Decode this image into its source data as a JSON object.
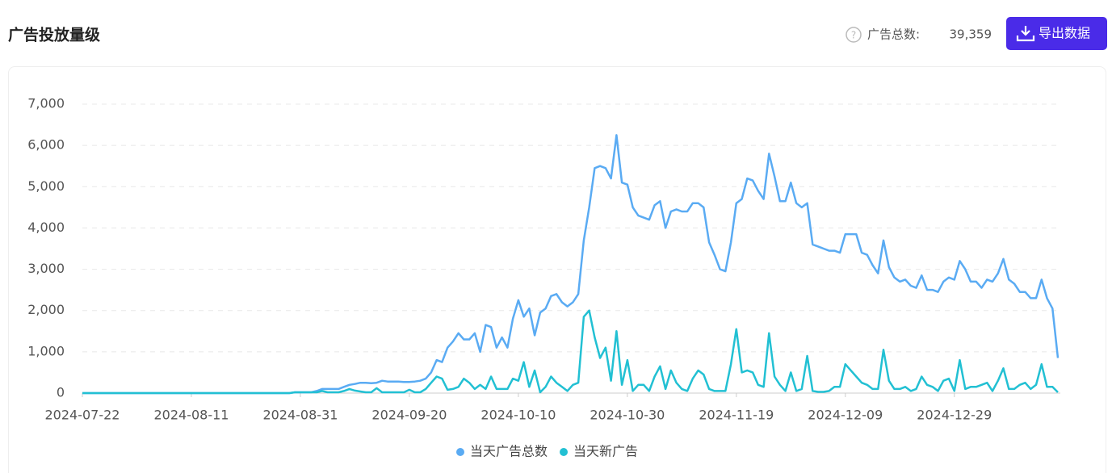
{
  "header": {
    "title": "广告投放量级",
    "total_label": "广告总数:",
    "total_value": "39,359",
    "button": "导出数据"
  },
  "chart_data": {
    "type": "line",
    "categories": [
      "2024-07-22",
      null,
      null,
      null,
      null,
      null,
      null,
      null,
      null,
      null,
      null,
      null,
      null,
      null,
      null,
      null,
      null,
      null,
      null,
      null,
      "2024-08-11",
      null,
      null,
      null,
      null,
      null,
      null,
      null,
      null,
      null,
      null,
      null,
      null,
      null,
      null,
      null,
      null,
      null,
      null,
      null,
      "2024-08-31",
      null,
      null,
      null,
      null,
      null,
      null,
      null,
      null,
      null,
      null,
      null,
      null,
      null,
      null,
      null,
      null,
      null,
      null,
      null,
      "2024-09-20",
      null,
      null,
      null,
      null,
      null,
      null,
      null,
      null,
      null,
      null,
      null,
      null,
      null,
      null,
      null,
      null,
      null,
      null,
      null,
      "2024-10-10",
      null,
      null,
      null,
      null,
      null,
      null,
      null,
      null,
      null,
      null,
      null,
      null,
      null,
      null,
      null,
      null,
      null,
      null,
      null,
      "2024-10-30",
      null,
      null,
      null,
      null,
      null,
      null,
      null,
      null,
      null,
      null,
      null,
      null,
      null,
      null,
      null,
      null,
      null,
      null,
      null,
      "2024-11-19",
      null,
      null,
      null,
      null,
      null,
      null,
      null,
      null,
      null,
      null,
      null,
      null,
      null,
      null,
      null,
      null,
      null,
      null,
      null,
      "2024-12-09",
      null,
      null,
      null,
      null,
      null,
      null,
      null,
      null,
      null,
      null,
      null,
      null,
      null,
      null,
      null,
      null,
      null,
      null,
      null,
      "2024-12-29",
      null,
      null,
      null,
      null,
      null,
      null,
      null,
      null,
      null,
      null,
      null,
      null,
      null,
      null,
      null,
      null,
      null,
      null,
      null
    ],
    "series": [
      {
        "name": "当天广告总数",
        "color": "#5aabf3",
        "values": [
          0,
          0,
          0,
          0,
          0,
          0,
          0,
          0,
          0,
          0,
          0,
          0,
          0,
          0,
          0,
          0,
          0,
          0,
          0,
          0,
          0,
          0,
          0,
          0,
          0,
          0,
          0,
          0,
          0,
          0,
          0,
          0,
          0,
          0,
          0,
          0,
          0,
          0,
          0,
          20,
          20,
          20,
          20,
          50,
          100,
          100,
          100,
          100,
          150,
          200,
          220,
          250,
          250,
          240,
          250,
          300,
          280,
          280,
          280,
          270,
          270,
          280,
          300,
          350,
          500,
          800,
          750,
          1100,
          1250,
          1450,
          1300,
          1300,
          1450,
          1000,
          1650,
          1600,
          1100,
          1350,
          1100,
          1800,
          2250,
          1850,
          2050,
          1400,
          1950,
          2050,
          2350,
          2400,
          2200,
          2100,
          2200,
          2400,
          3700,
          4500,
          5450,
          5500,
          5450,
          5200,
          6250,
          5100,
          5050,
          4500,
          4300,
          4250,
          4200,
          4550,
          4650,
          4000,
          4400,
          4450,
          4400,
          4400,
          4600,
          4600,
          4500,
          3650,
          3350,
          3000,
          2950,
          3650,
          4600,
          4700,
          5200,
          5150,
          4900,
          4700,
          5800,
          5250,
          4650,
          4650,
          5100,
          4600,
          4500,
          4600,
          3600,
          3550,
          3500,
          3450,
          3450,
          3400,
          3850,
          3850,
          3850,
          3400,
          3350,
          3100,
          2900,
          3700,
          3050,
          2800,
          2700,
          2750,
          2600,
          2550,
          2850,
          2500,
          2500,
          2450,
          2700,
          2800,
          2750,
          3200,
          3000,
          2700,
          2700,
          2550,
          2750,
          2700,
          2900,
          3250,
          2750,
          2650,
          2450,
          2450,
          2300,
          2300,
          2750,
          2300,
          2050,
          850
        ]
      },
      {
        "name": "当天新广告",
        "color": "#22c0d3",
        "values": [
          0,
          0,
          0,
          0,
          0,
          0,
          0,
          0,
          0,
          0,
          0,
          0,
          0,
          0,
          0,
          0,
          0,
          0,
          0,
          0,
          0,
          0,
          0,
          0,
          0,
          0,
          0,
          0,
          0,
          0,
          0,
          0,
          0,
          0,
          0,
          0,
          0,
          0,
          0,
          20,
          20,
          20,
          20,
          20,
          50,
          20,
          20,
          20,
          50,
          100,
          60,
          40,
          20,
          20,
          120,
          20,
          20,
          20,
          20,
          20,
          80,
          20,
          20,
          100,
          250,
          400,
          350,
          80,
          100,
          150,
          350,
          250,
          100,
          200,
          100,
          400,
          100,
          100,
          100,
          350,
          300,
          750,
          150,
          550,
          20,
          150,
          400,
          250,
          150,
          50,
          200,
          250,
          1850,
          2000,
          1350,
          850,
          1100,
          300,
          1500,
          200,
          800,
          50,
          200,
          200,
          50,
          400,
          650,
          100,
          550,
          250,
          100,
          50,
          350,
          550,
          450,
          100,
          50,
          50,
          50,
          700,
          1550,
          500,
          550,
          500,
          200,
          150,
          1450,
          400,
          200,
          50,
          500,
          50,
          100,
          900,
          50,
          30,
          30,
          50,
          150,
          150,
          700,
          550,
          400,
          250,
          200,
          100,
          100,
          1050,
          300,
          100,
          100,
          150,
          50,
          100,
          400,
          200,
          150,
          50,
          300,
          350,
          50,
          800,
          100,
          150,
          150,
          200,
          250,
          50,
          300,
          600,
          100,
          100,
          200,
          250,
          100,
          200,
          700,
          150,
          150,
          20
        ]
      }
    ],
    "ylim": [
      0,
      7000
    ],
    "yticks": [
      {
        "value": 0,
        "label": "0"
      },
      {
        "value": 1000,
        "label": "1,000"
      },
      {
        "value": 2000,
        "label": "2,000"
      },
      {
        "value": 3000,
        "label": "3,000"
      },
      {
        "value": 4000,
        "label": "4,000"
      },
      {
        "value": 5000,
        "label": "5,000"
      },
      {
        "value": 6000,
        "label": "6,000"
      },
      {
        "value": 7000,
        "label": "7,000"
      }
    ],
    "grid": true
  }
}
